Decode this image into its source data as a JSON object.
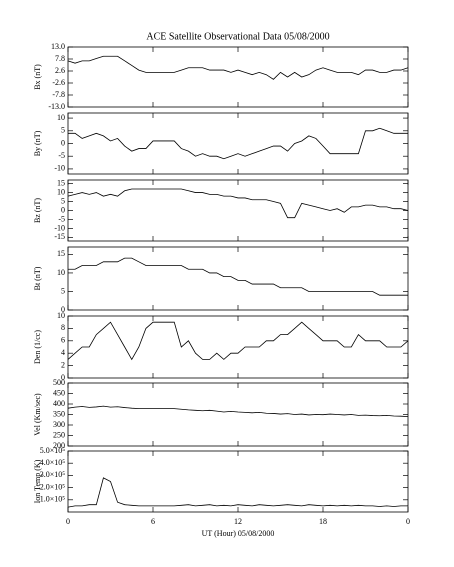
{
  "title": "ACE Satellite Observational Data   05/08/2000",
  "xlabel": "UT (Hour)  05/08/2000",
  "chart_data": [
    {
      "type": "line",
      "ylabel": "Bx (nT)",
      "color": "#000000",
      "xlim": [
        0,
        24
      ],
      "xticks": [
        0,
        6,
        12,
        18,
        {
          "value": 24,
          "label": "0"
        }
      ],
      "ylim": [
        -13,
        13
      ],
      "yticks": [
        {
          "value": 13,
          "label": "13.0"
        },
        7.8,
        2.6,
        -2.6,
        -7.8,
        {
          "value": -13,
          "label": "-13.0"
        }
      ],
      "x": [
        0,
        0.5,
        1,
        1.5,
        2,
        2.5,
        3,
        3.5,
        4,
        4.5,
        5,
        5.5,
        6,
        6.5,
        7,
        7.5,
        8,
        8.5,
        9,
        9.5,
        10,
        10.5,
        11,
        11.5,
        12,
        12.5,
        13,
        13.5,
        14,
        14.5,
        15,
        15.5,
        16,
        16.5,
        17,
        17.5,
        18,
        18.5,
        19,
        19.5,
        20,
        20.5,
        21,
        21.5,
        22,
        22.5,
        23,
        23.5,
        24
      ],
      "values": [
        7,
        6,
        7,
        7,
        8,
        9,
        9,
        9,
        7,
        5,
        3,
        2,
        2,
        2,
        2,
        2,
        3,
        4,
        4,
        4,
        3,
        3,
        3,
        2,
        3,
        2,
        1,
        2,
        1,
        -1,
        2,
        0,
        2,
        0,
        1,
        3,
        4,
        3,
        2,
        2,
        2,
        1,
        3,
        3,
        2,
        2,
        3,
        3,
        4
      ]
    },
    {
      "type": "line",
      "ylabel": "By (nT)",
      "color": "#000000",
      "xlim": [
        0,
        24
      ],
      "xticks": [
        0,
        6,
        12,
        18,
        {
          "value": 24,
          "label": "0"
        }
      ],
      "ylim": [
        -12,
        12
      ],
      "yticks": [
        -10,
        -5,
        0,
        5,
        10
      ],
      "x": [
        0,
        0.5,
        1,
        1.5,
        2,
        2.5,
        3,
        3.5,
        4,
        4.5,
        5,
        5.5,
        6,
        6.5,
        7,
        7.5,
        8,
        8.5,
        9,
        9.5,
        10,
        10.5,
        11,
        11.5,
        12,
        12.5,
        13,
        13.5,
        14,
        14.5,
        15,
        15.5,
        16,
        16.5,
        17,
        17.5,
        18,
        18.5,
        19,
        19.5,
        20,
        20.5,
        21,
        21.5,
        22,
        22.5,
        23,
        23.5,
        24
      ],
      "values": [
        4,
        4,
        2,
        3,
        4,
        3,
        1,
        2,
        -1,
        -3,
        -2,
        -2,
        1,
        1,
        1,
        1,
        -2,
        -3,
        -5,
        -4,
        -5,
        -5,
        -6,
        -5,
        -4,
        -5,
        -4,
        -3,
        -2,
        -1,
        -1,
        -3,
        0,
        1,
        3,
        2,
        -1,
        -4,
        -4,
        -4,
        -4,
        -4,
        5,
        5,
        6,
        5,
        4,
        4,
        4
      ]
    },
    {
      "type": "line",
      "ylabel": "Bz (nT)",
      "color": "#000000",
      "xlim": [
        0,
        24
      ],
      "xticks": [
        0,
        6,
        12,
        18,
        {
          "value": 24,
          "label": "0"
        }
      ],
      "ylim": [
        -17,
        17
      ],
      "yticks": [
        -15,
        -10,
        -5,
        0,
        5,
        10,
        15
      ],
      "x": [
        0,
        0.5,
        1,
        1.5,
        2,
        2.5,
        3,
        3.5,
        4,
        4.5,
        5,
        5.5,
        6,
        6.5,
        7,
        7.5,
        8,
        8.5,
        9,
        9.5,
        10,
        10.5,
        11,
        11.5,
        12,
        12.5,
        13,
        13.5,
        14,
        14.5,
        15,
        15.5,
        16,
        16.5,
        17,
        17.5,
        18,
        18.5,
        19,
        19.5,
        20,
        20.5,
        21,
        21.5,
        22,
        22.5,
        23,
        23.5,
        24
      ],
      "values": [
        8,
        9,
        10,
        9,
        10,
        8,
        9,
        8,
        11,
        12,
        12,
        12,
        12,
        12,
        12,
        12,
        12,
        11,
        10,
        10,
        9,
        9,
        8,
        8,
        7,
        7,
        6,
        6,
        6,
        5,
        4,
        -4,
        -4,
        4,
        3,
        2,
        1,
        0,
        1,
        -1,
        2,
        2,
        3,
        3,
        2,
        2,
        1,
        1,
        0
      ]
    },
    {
      "type": "line",
      "ylabel": "Bt (nT)",
      "color": "#000000",
      "xlim": [
        0,
        24
      ],
      "xticks": [
        0,
        6,
        12,
        18,
        {
          "value": 24,
          "label": "0"
        }
      ],
      "ylim": [
        0,
        17
      ],
      "yticks": [
        0,
        5,
        10,
        15
      ],
      "x": [
        0,
        0.5,
        1,
        1.5,
        2,
        2.5,
        3,
        3.5,
        4,
        4.5,
        5,
        5.5,
        6,
        6.5,
        7,
        7.5,
        8,
        8.5,
        9,
        9.5,
        10,
        10.5,
        11,
        11.5,
        12,
        12.5,
        13,
        13.5,
        14,
        14.5,
        15,
        15.5,
        16,
        16.5,
        17,
        17.5,
        18,
        18.5,
        19,
        19.5,
        20,
        20.5,
        21,
        21.5,
        22,
        22.5,
        23,
        23.5,
        24
      ],
      "values": [
        11,
        11,
        12,
        12,
        12,
        13,
        13,
        13,
        14,
        14,
        13,
        12,
        12,
        12,
        12,
        12,
        12,
        11,
        11,
        11,
        10,
        10,
        9,
        9,
        8,
        8,
        7,
        7,
        7,
        7,
        6,
        6,
        6,
        6,
        5,
        5,
        5,
        5,
        5,
        5,
        5,
        5,
        5,
        5,
        4,
        4,
        4,
        4,
        4
      ]
    },
    {
      "type": "line",
      "ylabel": "Den (1/cc)",
      "color": "#000000",
      "xlim": [
        0,
        24
      ],
      "xticks": [
        0,
        6,
        12,
        18,
        {
          "value": 24,
          "label": "0"
        }
      ],
      "ylim": [
        0,
        10
      ],
      "yticks": [
        0,
        2,
        4,
        6,
        8,
        10
      ],
      "x": [
        0,
        0.5,
        1,
        1.5,
        2,
        2.5,
        3,
        3.5,
        4,
        4.5,
        5,
        5.5,
        6,
        6.5,
        7,
        7.5,
        8,
        8.5,
        9,
        9.5,
        10,
        10.5,
        11,
        11.5,
        12,
        12.5,
        13,
        13.5,
        14,
        14.5,
        15,
        15.5,
        16,
        16.5,
        17,
        17.5,
        18,
        18.5,
        19,
        19.5,
        20,
        20.5,
        21,
        21.5,
        22,
        22.5,
        23,
        23.5,
        24
      ],
      "values": [
        3,
        4,
        5,
        5,
        7,
        8,
        9,
        7,
        5,
        3,
        5,
        8,
        9,
        9,
        9,
        9,
        5,
        6,
        4,
        3,
        3,
        4,
        3,
        4,
        4,
        5,
        5,
        5,
        6,
        6,
        7,
        7,
        8,
        9,
        8,
        7,
        6,
        6,
        6,
        5,
        5,
        7,
        6,
        6,
        6,
        5,
        5,
        5,
        6
      ]
    },
    {
      "type": "line",
      "ylabel": "Vel (Km/sec)",
      "color": "#000000",
      "xlim": [
        0,
        24
      ],
      "xticks": [
        0,
        6,
        12,
        18,
        {
          "value": 24,
          "label": "0"
        }
      ],
      "ylim": [
        200,
        500
      ],
      "yticks": [
        200,
        250,
        300,
        350,
        400,
        450,
        500
      ],
      "x": [
        0,
        0.5,
        1,
        1.5,
        2,
        2.5,
        3,
        3.5,
        4,
        4.5,
        5,
        5.5,
        6,
        6.5,
        7,
        7.5,
        8,
        8.5,
        9,
        9.5,
        10,
        10.5,
        11,
        11.5,
        12,
        12.5,
        13,
        13.5,
        14,
        14.5,
        15,
        15.5,
        16,
        16.5,
        17,
        17.5,
        18,
        18.5,
        19,
        19.5,
        20,
        20.5,
        21,
        21.5,
        22,
        22.5,
        23,
        23.5,
        24
      ],
      "values": [
        380,
        385,
        388,
        384,
        386,
        390,
        385,
        387,
        383,
        380,
        378,
        378,
        378,
        378,
        378,
        378,
        375,
        372,
        370,
        368,
        370,
        366,
        362,
        365,
        362,
        360,
        358,
        360,
        356,
        355,
        352,
        354,
        350,
        352,
        348,
        350,
        349,
        352,
        350,
        348,
        350,
        346,
        347,
        345,
        344,
        346,
        343,
        342,
        340
      ]
    },
    {
      "type": "line",
      "ylabel": "Ion Temp (K)",
      "color": "#000000",
      "xlim": [
        0,
        24
      ],
      "xticks": [
        0,
        6,
        12,
        18,
        {
          "value": 24,
          "label": "0"
        }
      ],
      "ylim": [
        0,
        500000
      ],
      "yticks": [
        {
          "value": 100000,
          "label": "1.0×10⁵"
        },
        {
          "value": 200000,
          "label": "2.0×10⁵"
        },
        {
          "value": 300000,
          "label": "3.0×10⁵"
        },
        {
          "value": 400000,
          "label": "4.0×10⁵"
        },
        {
          "value": 500000,
          "label": "5.0×10⁵"
        }
      ],
      "x": [
        0,
        0.5,
        1,
        1.5,
        2,
        2.5,
        3,
        3.5,
        4,
        4.5,
        5,
        5.5,
        6,
        6.5,
        7,
        7.5,
        8,
        8.5,
        9,
        9.5,
        10,
        10.5,
        11,
        11.5,
        12,
        12.5,
        13,
        13.5,
        14,
        14.5,
        15,
        15.5,
        16,
        16.5,
        17,
        17.5,
        18,
        18.5,
        19,
        19.5,
        20,
        20.5,
        21,
        21.5,
        22,
        22.5,
        23,
        23.5,
        24
      ],
      "values": [
        40000,
        50000,
        50000,
        60000,
        60000,
        280000,
        250000,
        80000,
        60000,
        55000,
        50000,
        50000,
        50000,
        50000,
        50000,
        50000,
        55000,
        60000,
        50000,
        55000,
        60000,
        50000,
        55000,
        50000,
        60000,
        55000,
        50000,
        60000,
        55000,
        50000,
        55000,
        60000,
        55000,
        50000,
        60000,
        55000,
        50000,
        55000,
        50000,
        55000,
        50000,
        55000,
        50000,
        50000,
        45000,
        50000,
        45000,
        50000,
        50000
      ]
    }
  ]
}
